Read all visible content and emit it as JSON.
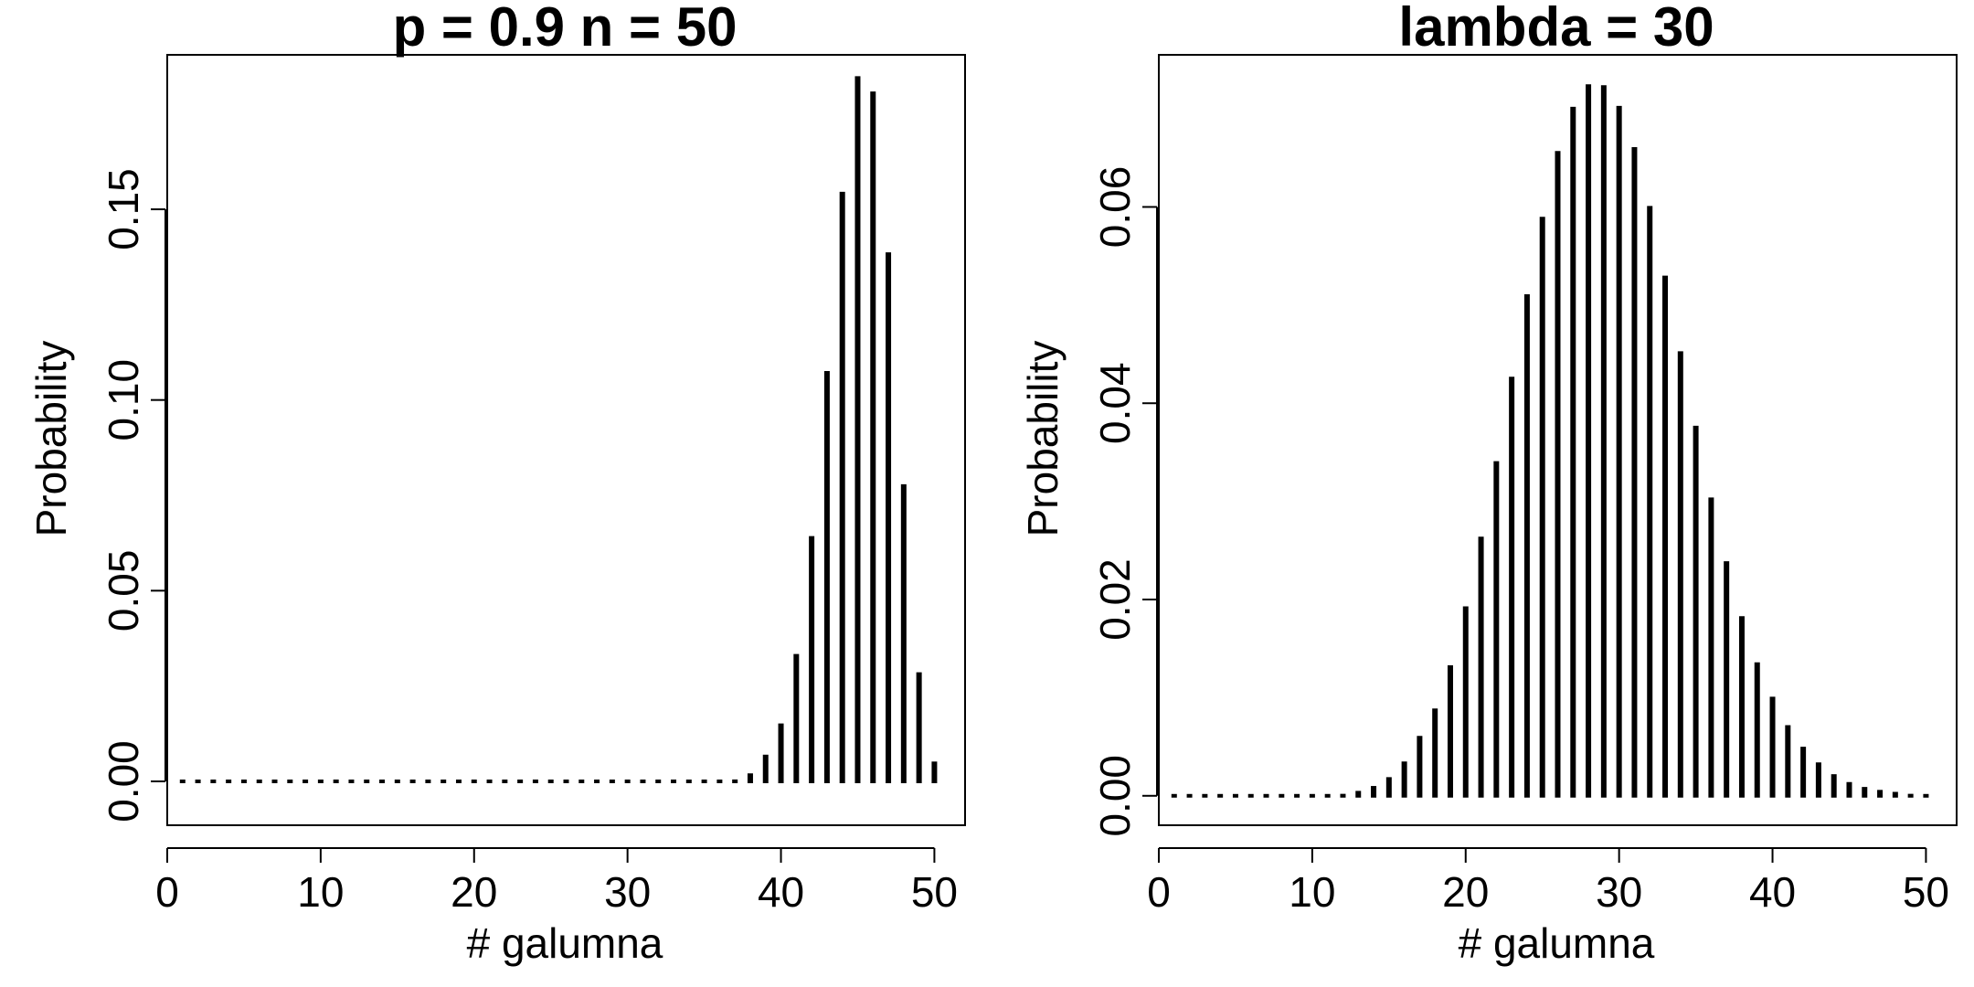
{
  "chart_data": [
    {
      "type": "bar",
      "title": "p = 0.9 n = 50",
      "xlabel": "# galumna",
      "ylabel": "Probability",
      "xlim": [
        0,
        52
      ],
      "ylim": [
        -0.0115,
        0.1905
      ],
      "xticks": [
        0,
        10,
        20,
        30,
        40,
        50
      ],
      "xtick_labels": [
        "0",
        "10",
        "20",
        "30",
        "40",
        "50"
      ],
      "yticks": [
        0.0,
        0.05,
        0.1,
        0.15
      ],
      "ytick_labels": [
        "0.00",
        "0.05",
        "0.10",
        "0.15"
      ],
      "grid": false,
      "color": "#000000",
      "x": [
        1,
        2,
        3,
        4,
        5,
        6,
        7,
        8,
        9,
        10,
        11,
        12,
        13,
        14,
        15,
        16,
        17,
        18,
        19,
        20,
        21,
        22,
        23,
        24,
        25,
        26,
        27,
        28,
        29,
        30,
        31,
        32,
        33,
        34,
        35,
        36,
        37,
        38,
        39,
        40,
        41,
        42,
        43,
        44,
        45,
        46,
        47,
        48,
        49,
        50
      ],
      "values": [
        0,
        0,
        0,
        0,
        0,
        0,
        0,
        0,
        0,
        0,
        0,
        0,
        0,
        0,
        0,
        0,
        0,
        0,
        0,
        0,
        0,
        0,
        0,
        0,
        0,
        0,
        0,
        0,
        0,
        0,
        0,
        0,
        0,
        0,
        0,
        0.0001,
        0.0005,
        0.0021,
        0.007,
        0.0152,
        0.0334,
        0.0643,
        0.1076,
        0.1546,
        0.1849,
        0.1809,
        0.1387,
        0.0779,
        0.0286,
        0.0052
      ]
    },
    {
      "type": "bar",
      "title": "lambda = 30",
      "xlabel": "# galumna",
      "ylabel": "Probability",
      "xlim": [
        0,
        52
      ],
      "ylim": [
        -0.003,
        0.0755
      ],
      "xticks": [
        0,
        10,
        20,
        30,
        40,
        50
      ],
      "xtick_labels": [
        "0",
        "10",
        "20",
        "30",
        "40",
        "50"
      ],
      "yticks": [
        0.0,
        0.02,
        0.04,
        0.06
      ],
      "ytick_labels": [
        "0.00",
        "0.02",
        "0.04",
        "0.06"
      ],
      "grid": false,
      "color": "#000000",
      "x": [
        1,
        2,
        3,
        4,
        5,
        6,
        7,
        8,
        9,
        10,
        11,
        12,
        13,
        14,
        15,
        16,
        17,
        18,
        19,
        20,
        21,
        22,
        23,
        24,
        25,
        26,
        27,
        28,
        29,
        30,
        31,
        32,
        33,
        34,
        35,
        36,
        37,
        38,
        39,
        40,
        41,
        42,
        43,
        44,
        45,
        46,
        47,
        48,
        49,
        50
      ],
      "values": [
        0,
        0,
        0,
        0,
        0,
        0,
        0,
        0,
        0,
        0,
        0.0001,
        0.0002,
        0.0005,
        0.001,
        0.0019,
        0.0035,
        0.0061,
        0.0089,
        0.0133,
        0.0193,
        0.0264,
        0.0341,
        0.0427,
        0.0511,
        0.059,
        0.0657,
        0.0702,
        0.0725,
        0.0724,
        0.0703,
        0.0661,
        0.0601,
        0.053,
        0.0453,
        0.0377,
        0.0304,
        0.0239,
        0.0183,
        0.0136,
        0.0101,
        0.0072,
        0.005,
        0.0034,
        0.0022,
        0.0014,
        0.0009,
        0.0006,
        0.0004,
        0.0002,
        0.0001
      ]
    }
  ]
}
